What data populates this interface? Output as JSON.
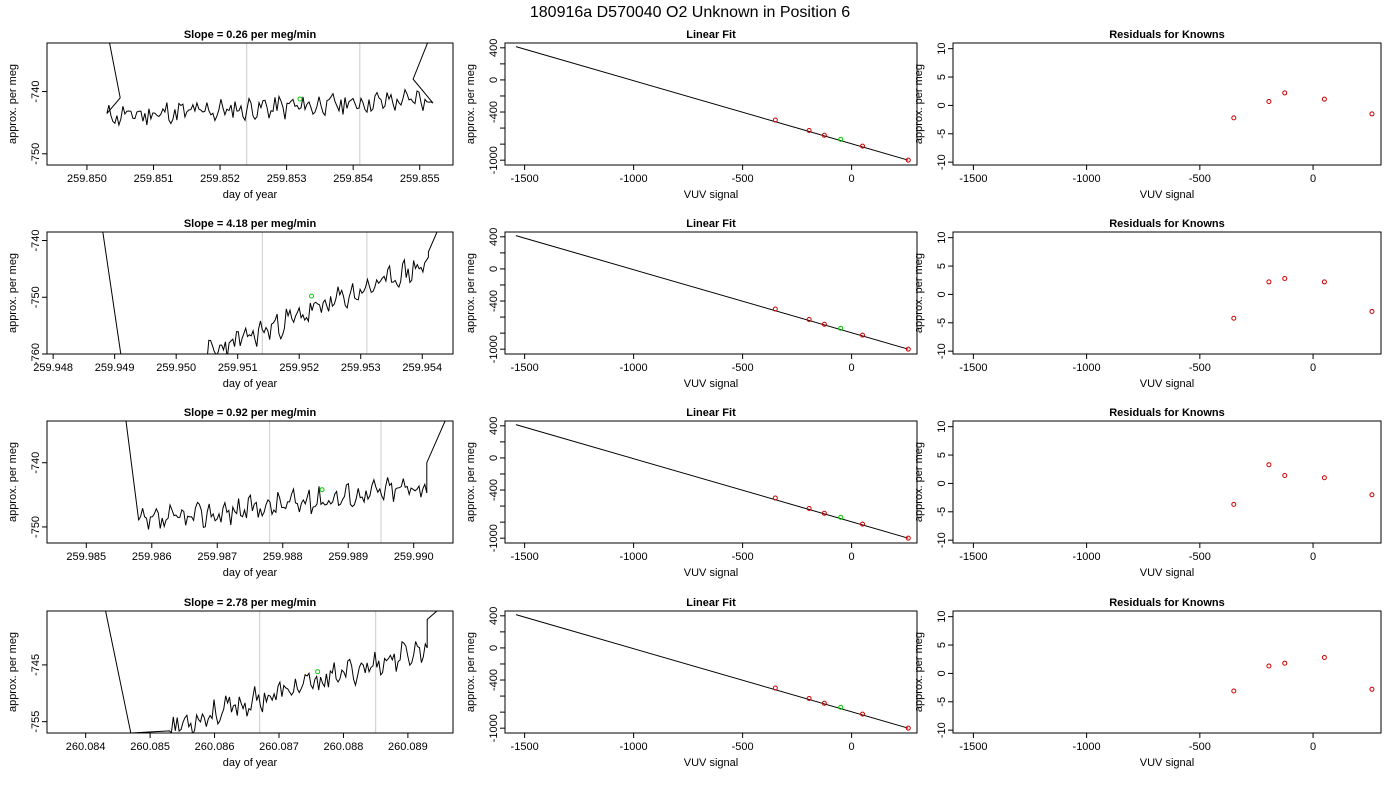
{
  "title": "180916a      D570040    O2 Unknown in Position  6",
  "colors": {
    "trace": "#000000",
    "gridline": "#cccccc",
    "unknown_point": "#00cc00",
    "known_point": "#cc0000",
    "frame": "#000000"
  },
  "chart_data": [
    {
      "row": 0,
      "col": 0,
      "type": "line",
      "title": "Slope =  0.26  per meg/min",
      "xlabel": "day of year",
      "ylabel": "approx. per meg",
      "xlim": [
        259.8494,
        259.8555
      ],
      "ylim": [
        -751.8,
        -732.2
      ],
      "xticks": [
        "259.850",
        "259.851",
        "259.852",
        "259.853",
        "259.854",
        "259.855"
      ],
      "xtick_values": [
        259.85,
        259.851,
        259.852,
        259.853,
        259.854,
        259.855
      ],
      "yticks": [
        "-750",
        "-740"
      ],
      "ytick_values": [
        -750,
        -740
      ],
      "vlines": [
        259.8524,
        259.8541
      ],
      "trace": {
        "x0": 259.8503,
        "x1": 259.8552,
        "step": 3e-05,
        "pre": [
          [
            259.8503,
            -730
          ],
          [
            259.8505,
            -741
          ]
        ],
        "post": [
          [
            259.8549,
            -738
          ],
          [
            259.8552,
            -730
          ]
        ],
        "base": [
          -744,
          -741.2
        ],
        "amp": 1.5,
        "seed": 11
      },
      "green_point": [
        259.8532,
        -741.2
      ]
    },
    {
      "row": 0,
      "col": 1,
      "type": "line",
      "title": "Linear Fit",
      "xlabel": "VUV signal",
      "ylabel": "approx. per meg",
      "xlim": [
        -1590,
        300
      ],
      "ylim": [
        -1060,
        460
      ],
      "xticks": [
        "-1500",
        "-1000",
        "-500",
        "0"
      ],
      "xtick_values": [
        -1500,
        -1000,
        -500,
        0
      ],
      "yticks": [
        "-1000",
        "-800",
        "-600",
        "-400",
        "-200",
        "0",
        "200",
        "400"
      ],
      "ytick_values": [
        -1000,
        -800,
        -600,
        -400,
        -200,
        0,
        200,
        400
      ],
      "ytick_labels_shown": [
        "-1000",
        "",
        "-400",
        "",
        "0",
        "",
        "400"
      ],
      "fit_line": [
        [
          -1540,
          415
        ],
        [
          260,
          -1000
        ]
      ],
      "known_points": [
        [
          -350,
          -500
        ],
        [
          -195,
          -630
        ],
        [
          -125,
          -690
        ],
        [
          50,
          -825
        ],
        [
          260,
          -1000
        ]
      ],
      "unknown_point": [
        -50,
        -740
      ]
    },
    {
      "row": 0,
      "col": 2,
      "type": "scatter",
      "title": "Residuals for Knowns",
      "xlabel": "VUV signal",
      "ylabel": "approx. per meg",
      "xlim": [
        -1590,
        300
      ],
      "ylim": [
        -10.5,
        11
      ],
      "xticks": [
        "-1500",
        "-1000",
        "-500",
        "0"
      ],
      "xtick_values": [
        -1500,
        -1000,
        -500,
        0
      ],
      "yticks": [
        "-10",
        "-5",
        "0",
        "5",
        "10"
      ],
      "ytick_values": [
        -10,
        -5,
        0,
        5,
        10
      ],
      "points": [
        [
          -350,
          -2.2
        ],
        [
          -195,
          0.7
        ],
        [
          -125,
          2.2
        ],
        [
          50,
          1.1
        ],
        [
          260,
          -1.5
        ]
      ]
    },
    {
      "row": 1,
      "col": 0,
      "type": "line",
      "title": "Slope =  4.18  per meg/min",
      "xlabel": "day of year",
      "ylabel": "approx. per meg",
      "xlim": [
        259.9479,
        259.9545
      ],
      "ylim": [
        -760,
        -738.5
      ],
      "xticks": [
        "259.948",
        "259.949",
        "259.950",
        "259.951",
        "259.952",
        "259.953",
        "259.954"
      ],
      "xtick_values": [
        259.948,
        259.949,
        259.95,
        259.951,
        259.952,
        259.953,
        259.954
      ],
      "yticks": [
        "-760",
        "-750",
        "-740"
      ],
      "ytick_values": [
        -760,
        -750,
        -740
      ],
      "vlines": [
        259.9514,
        259.9531
      ],
      "trace": {
        "x0": 259.9505,
        "x1": 259.9541,
        "step": 3e-05,
        "pre": [
          [
            259.9488,
            -738
          ],
          [
            259.9491,
            -760
          ]
        ],
        "post": [
          [
            259.9541,
            -742
          ],
          [
            259.9543,
            -737
          ]
        ],
        "base": [
          -760,
          -744
        ],
        "amp": 1.8,
        "seed": 23
      },
      "green_point": [
        259.9522,
        -749.8
      ]
    },
    {
      "row": 1,
      "col": 1,
      "type": "line",
      "title": "Linear Fit",
      "xlabel": "VUV signal",
      "ylabel": "approx. per meg",
      "xlim": [
        -1590,
        300
      ],
      "ylim": [
        -1060,
        460
      ],
      "xticks": [
        "-1500",
        "-1000",
        "-500",
        "0"
      ],
      "xtick_values": [
        -1500,
        -1000,
        -500,
        0
      ],
      "yticks": [
        "-1000",
        "-800",
        "-600",
        "-400",
        "-200",
        "0",
        "200",
        "400"
      ],
      "ytick_values": [
        -1000,
        -800,
        -600,
        -400,
        -200,
        0,
        200,
        400
      ],
      "ytick_labels_shown": [
        "-1000",
        "",
        "-400",
        "",
        "0",
        "",
        "400"
      ],
      "fit_line": [
        [
          -1540,
          415
        ],
        [
          260,
          -1000
        ]
      ],
      "known_points": [
        [
          -350,
          -500
        ],
        [
          -195,
          -630
        ],
        [
          -125,
          -690
        ],
        [
          50,
          -825
        ],
        [
          260,
          -1000
        ]
      ],
      "unknown_point": [
        -50,
        -740
      ]
    },
    {
      "row": 1,
      "col": 2,
      "type": "scatter",
      "title": "Residuals for Knowns",
      "xlabel": "VUV signal",
      "ylabel": "approx. per meg",
      "xlim": [
        -1590,
        300
      ],
      "ylim": [
        -10.5,
        11
      ],
      "xticks": [
        "-1500",
        "-1000",
        "-500",
        "0"
      ],
      "xtick_values": [
        -1500,
        -1000,
        -500,
        0
      ],
      "yticks": [
        "-10",
        "-5",
        "0",
        "5",
        "10"
      ],
      "ytick_values": [
        -10,
        -5,
        0,
        5,
        10
      ],
      "points": [
        [
          -350,
          -4.2
        ],
        [
          -195,
          2.2
        ],
        [
          -125,
          2.8
        ],
        [
          50,
          2.2
        ],
        [
          260,
          -3.0
        ]
      ]
    },
    {
      "row": 2,
      "col": 0,
      "type": "line",
      "title": "Slope =  0.92  per meg/min",
      "xlabel": "day of year",
      "ylabel": "approx. per meg",
      "xlim": [
        259.9844,
        259.9906
      ],
      "ylim": [
        -752.5,
        -733.5
      ],
      "xticks": [
        "259.985",
        "259.986",
        "259.987",
        "259.988",
        "259.989",
        "259.990"
      ],
      "xtick_values": [
        259.985,
        259.986,
        259.987,
        259.988,
        259.989,
        259.99
      ],
      "yticks": [
        "-750",
        "-740"
      ],
      "ytick_values": [
        -750,
        -740
      ],
      "vlines": [
        259.9878,
        259.9895
      ],
      "trace": {
        "x0": 259.9858,
        "x1": 259.9902,
        "step": 3e-05,
        "pre": [
          [
            259.9856,
            -733
          ],
          [
            259.9858,
            -749
          ]
        ],
        "post": [
          [
            259.9902,
            -740
          ],
          [
            259.9905,
            -733
          ]
        ],
        "base": [
          -749.5,
          -743.5
        ],
        "amp": 1.6,
        "seed": 37
      },
      "green_point": [
        259.9886,
        -744.2
      ]
    },
    {
      "row": 2,
      "col": 1,
      "type": "line",
      "title": "Linear Fit",
      "xlabel": "VUV signal",
      "ylabel": "approx. per meg",
      "xlim": [
        -1590,
        300
      ],
      "ylim": [
        -1060,
        460
      ],
      "xticks": [
        "-1500",
        "-1000",
        "-500",
        "0"
      ],
      "xtick_values": [
        -1500,
        -1000,
        -500,
        0
      ],
      "yticks": [
        "-1000",
        "-800",
        "-600",
        "-400",
        "-200",
        "0",
        "200",
        "400"
      ],
      "ytick_values": [
        -1000,
        -800,
        -600,
        -400,
        -200,
        0,
        200,
        400
      ],
      "ytick_labels_shown": [
        "-1000",
        "",
        "-400",
        "",
        "0",
        "",
        "400"
      ],
      "fit_line": [
        [
          -1540,
          415
        ],
        [
          260,
          -1000
        ]
      ],
      "known_points": [
        [
          -350,
          -500
        ],
        [
          -195,
          -630
        ],
        [
          -125,
          -690
        ],
        [
          50,
          -825
        ],
        [
          260,
          -1000
        ]
      ],
      "unknown_point": [
        -50,
        -740
      ]
    },
    {
      "row": 2,
      "col": 2,
      "type": "scatter",
      "title": "Residuals for Knowns",
      "xlabel": "VUV signal",
      "ylabel": "approx. per meg",
      "xlim": [
        -1590,
        300
      ],
      "ylim": [
        -10.5,
        11
      ],
      "xticks": [
        "-1500",
        "-1000",
        "-500",
        "0"
      ],
      "xtick_values": [
        -1500,
        -1000,
        -500,
        0
      ],
      "yticks": [
        "-10",
        "-5",
        "0",
        "5",
        "10"
      ],
      "ytick_values": [
        -10,
        -5,
        0,
        5,
        10
      ],
      "points": [
        [
          -350,
          -3.7
        ],
        [
          -195,
          3.3
        ],
        [
          -125,
          1.4
        ],
        [
          50,
          1.0
        ],
        [
          260,
          -2.0
        ]
      ]
    },
    {
      "row": 3,
      "col": 0,
      "type": "line",
      "title": "Slope =  2.78  per meg/min",
      "xlabel": "day of year",
      "ylabel": "approx. per meg",
      "xlim": [
        260.0834,
        260.0897
      ],
      "ylim": [
        -757,
        -735.5
      ],
      "xticks": [
        "260.084",
        "260.085",
        "260.086",
        "260.087",
        "260.088",
        "260.089"
      ],
      "xtick_values": [
        260.084,
        260.085,
        260.086,
        260.087,
        260.088,
        260.089
      ],
      "yticks": [
        "-755",
        "-745"
      ],
      "ytick_values": [
        -755,
        -745
      ],
      "vlines": [
        260.0867,
        260.0885
      ],
      "trace": {
        "x0": 260.0853,
        "x1": 260.0893,
        "step": 3e-05,
        "pre": [
          [
            260.0843,
            -735
          ],
          [
            260.0847,
            -757
          ]
        ],
        "post": [
          [
            260.0893,
            -737
          ],
          [
            260.0895,
            -735
          ]
        ],
        "base": [
          -756,
          -742
        ],
        "amp": 1.8,
        "seed": 53
      },
      "green_point": [
        260.0876,
        -746.2
      ]
    },
    {
      "row": 3,
      "col": 1,
      "type": "line",
      "title": "Linear Fit",
      "xlabel": "VUV signal",
      "ylabel": "approx. per meg",
      "xlim": [
        -1590,
        300
      ],
      "ylim": [
        -1060,
        460
      ],
      "xticks": [
        "-1500",
        "-1000",
        "-500",
        "0"
      ],
      "xtick_values": [
        -1500,
        -1000,
        -500,
        0
      ],
      "yticks": [
        "-1000",
        "-800",
        "-600",
        "-400",
        "-200",
        "0",
        "200",
        "400"
      ],
      "ytick_values": [
        -1000,
        -800,
        -600,
        -400,
        -200,
        0,
        200,
        400
      ],
      "ytick_labels_shown": [
        "-1000",
        "",
        "-400",
        "",
        "0",
        "",
        "400"
      ],
      "fit_line": [
        [
          -1540,
          415
        ],
        [
          260,
          -1000
        ]
      ],
      "known_points": [
        [
          -350,
          -500
        ],
        [
          -195,
          -630
        ],
        [
          -125,
          -690
        ],
        [
          50,
          -825
        ],
        [
          260,
          -1000
        ]
      ],
      "unknown_point": [
        -50,
        -740
      ]
    },
    {
      "row": 3,
      "col": 2,
      "type": "scatter",
      "title": "Residuals for Knowns",
      "xlabel": "VUV signal",
      "ylabel": "approx. per meg",
      "xlim": [
        -1590,
        300
      ],
      "ylim": [
        -10.5,
        11
      ],
      "xticks": [
        "-1500",
        "-1000",
        "-500",
        "0"
      ],
      "xtick_values": [
        -1500,
        -1000,
        -500,
        0
      ],
      "yticks": [
        "-10",
        "-5",
        "0",
        "5",
        "10"
      ],
      "ytick_values": [
        -10,
        -5,
        0,
        5,
        10
      ],
      "points": [
        [
          -350,
          -3.1
        ],
        [
          -195,
          1.3
        ],
        [
          -125,
          1.8
        ],
        [
          50,
          2.8
        ],
        [
          260,
          -2.8
        ]
      ]
    }
  ]
}
